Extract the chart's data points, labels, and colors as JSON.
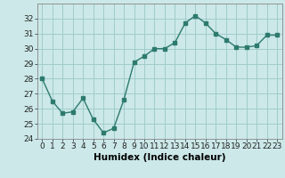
{
  "x": [
    0,
    1,
    2,
    3,
    4,
    5,
    6,
    7,
    8,
    9,
    10,
    11,
    12,
    13,
    14,
    15,
    16,
    17,
    18,
    19,
    20,
    21,
    22,
    23
  ],
  "y": [
    28.0,
    26.5,
    25.7,
    25.8,
    26.7,
    25.3,
    24.4,
    24.7,
    26.6,
    29.1,
    29.5,
    30.0,
    30.0,
    30.4,
    31.7,
    32.2,
    31.7,
    31.0,
    30.6,
    30.1,
    30.1,
    30.2,
    30.9,
    30.9
  ],
  "xlabel": "Humidex (Indice chaleur)",
  "ylim": [
    24,
    33
  ],
  "yticks": [
    24,
    25,
    26,
    27,
    28,
    29,
    30,
    31,
    32
  ],
  "xticks": [
    0,
    1,
    2,
    3,
    4,
    5,
    6,
    7,
    8,
    9,
    10,
    11,
    12,
    13,
    14,
    15,
    16,
    17,
    18,
    19,
    20,
    21,
    22,
    23
  ],
  "line_color": "#2d7a6e",
  "marker_color": "#2d7a6e",
  "bg_color": "#cce8e8",
  "grid_color": "#a0cccc",
  "tick_fontsize": 6.5,
  "xlabel_fontsize": 7.5
}
